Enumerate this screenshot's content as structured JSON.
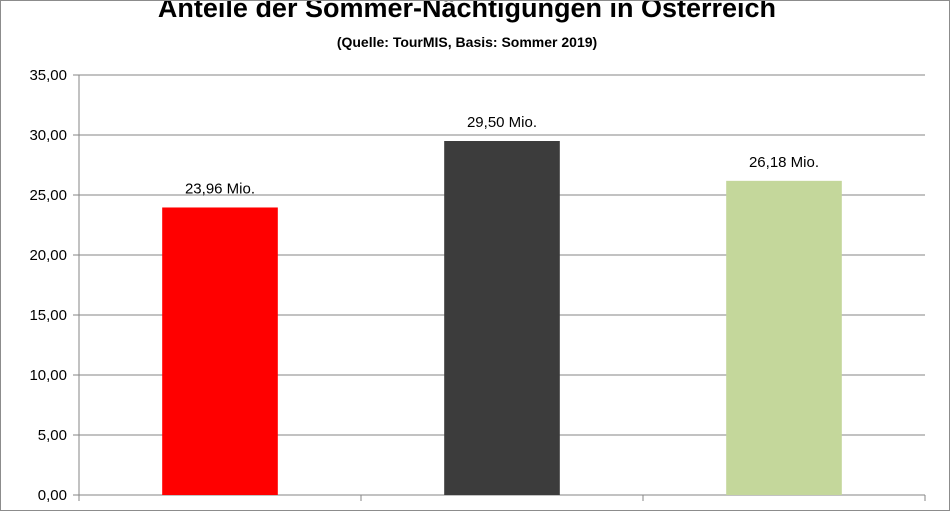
{
  "chart_data": {
    "type": "bar",
    "title": "Anteile der Sommer-Nächtigungen in Österreich",
    "subtitle": "(Quelle: TourMIS,  Basis: Sommer 2019)",
    "xlabel": "",
    "ylabel": "",
    "categories": [
      "",
      "",
      ""
    ],
    "values": [
      23.96,
      29.5,
      26.18
    ],
    "data_labels": [
      "23,96 Mio.",
      "29,50 Mio.",
      "26,18 Mio."
    ],
    "bar_colors": [
      "#ff0000",
      "#3c3c3c",
      "#c4d79b"
    ],
    "ylim": [
      0,
      35
    ],
    "yticks": [
      0,
      5,
      10,
      15,
      20,
      25,
      30,
      35
    ],
    "ytick_labels": [
      "0,00",
      "5,00",
      "10,00",
      "15,00",
      "20,00",
      "25,00",
      "30,00",
      "35,00"
    ],
    "grid": true,
    "legend": "none"
  },
  "colors": {
    "gridline": "#868686",
    "axis": "#868686",
    "background": "#ffffff"
  }
}
